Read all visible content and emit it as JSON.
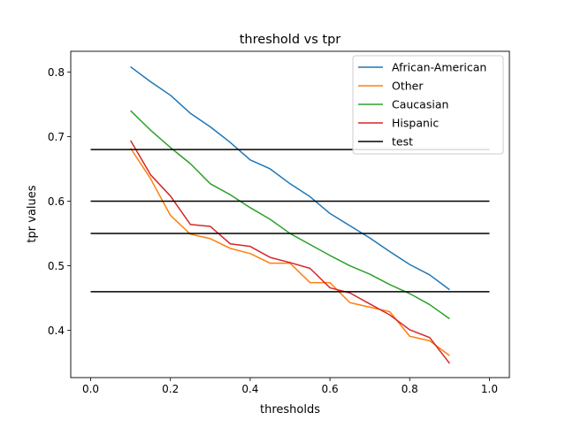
{
  "chart_data": {
    "type": "line",
    "title": "threshold vs tpr",
    "xlabel": "thresholds",
    "ylabel": "tpr values",
    "xlim": [
      -0.05,
      1.05
    ],
    "ylim": [
      0.327,
      0.832
    ],
    "xticks": [
      0.0,
      0.2,
      0.4,
      0.6,
      0.8,
      1.0
    ],
    "xtick_labels": [
      "0.0",
      "0.2",
      "0.4",
      "0.6",
      "0.8",
      "1.0"
    ],
    "yticks": [
      0.4,
      0.5,
      0.6,
      0.7,
      0.8
    ],
    "ytick_labels": [
      "0.4",
      "0.5",
      "0.6",
      "0.7",
      "0.8"
    ],
    "grid": false,
    "legend_position": "top-right",
    "x": [
      0.1,
      0.15,
      0.2,
      0.25,
      0.3,
      0.35,
      0.4,
      0.45,
      0.5,
      0.55,
      0.6,
      0.65,
      0.7,
      0.75,
      0.8,
      0.85,
      0.9
    ],
    "series": [
      {
        "name": "African-American",
        "color": "#1f77b4",
        "values": [
          0.808,
          0.785,
          0.764,
          0.736,
          0.715,
          0.691,
          0.664,
          0.65,
          0.627,
          0.607,
          0.581,
          0.562,
          0.543,
          0.522,
          0.502,
          0.486,
          0.463
        ]
      },
      {
        "name": "Other",
        "color": "#ff7f0e",
        "values": [
          0.682,
          0.635,
          0.578,
          0.549,
          0.542,
          0.527,
          0.519,
          0.504,
          0.504,
          0.474,
          0.474,
          0.443,
          0.436,
          0.429,
          0.391,
          0.384,
          0.361
        ]
      },
      {
        "name": "Caucasian",
        "color": "#2ca02c",
        "values": [
          0.74,
          0.71,
          0.683,
          0.658,
          0.627,
          0.61,
          0.59,
          0.572,
          0.55,
          0.533,
          0.516,
          0.5,
          0.487,
          0.471,
          0.457,
          0.44,
          0.418
        ]
      },
      {
        "name": "Hispanic",
        "color": "#d62728",
        "values": [
          0.694,
          0.641,
          0.608,
          0.564,
          0.561,
          0.534,
          0.53,
          0.513,
          0.505,
          0.496,
          0.466,
          0.458,
          0.441,
          0.424,
          0.401,
          0.389,
          0.349
        ]
      }
    ],
    "reference_lines": {
      "name": "test",
      "color": "#000000",
      "x_range": [
        0.0,
        1.0
      ],
      "y_values": [
        0.68,
        0.6,
        0.55,
        0.46
      ]
    }
  }
}
